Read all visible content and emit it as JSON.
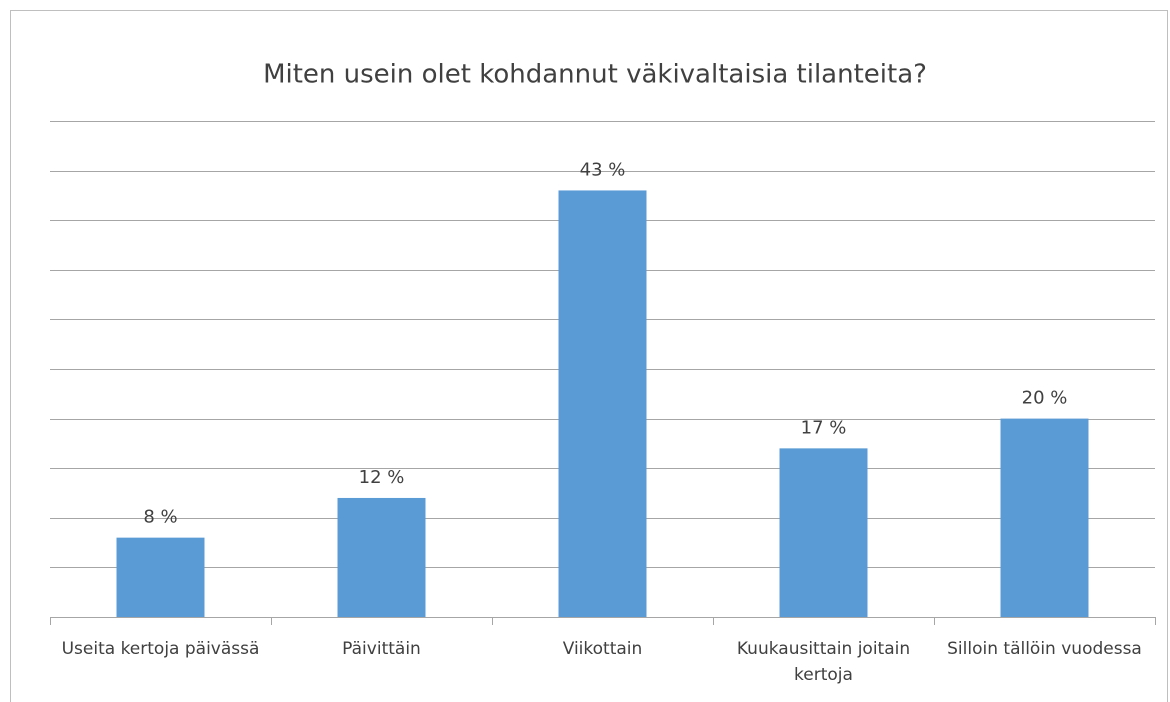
{
  "chart_data": {
    "type": "bar",
    "title": "Miten usein olet kohdannut väkivaltaisia tilanteita?",
    "categories": [
      "Useita kertoja päivässä",
      "Päivittäin",
      "Viikottain",
      "Kuukausittain joitain kertoja",
      "Silloin tällöin vuodessa"
    ],
    "values": [
      8,
      12,
      43,
      17,
      20
    ],
    "value_labels": [
      "8 %",
      "12 %",
      "43 %",
      "17 %",
      "20 %"
    ],
    "color": "#5b9bd5",
    "ylim": [
      0,
      50
    ],
    "yticks": [
      0,
      5,
      10,
      15,
      20,
      25,
      30,
      35,
      40,
      45,
      50
    ],
    "grid": true
  }
}
